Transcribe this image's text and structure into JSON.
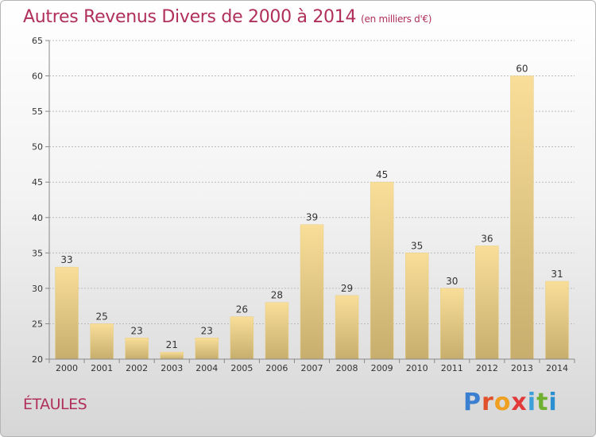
{
  "title": "Autres Revenus Divers de 2000 à 2014",
  "unit": "(en milliers d'€)",
  "town": "ÉTAULES",
  "logo": {
    "letters": [
      "P",
      "r",
      "o",
      "x",
      "i",
      "t",
      "i"
    ],
    "colors": [
      "#3b7fd0",
      "#e0502a",
      "#f0a020",
      "#e23a3a",
      "#3b9fd8",
      "#70b030",
      "#2c8fd0"
    ]
  },
  "chart_data": {
    "type": "bar",
    "title": "Autres Revenus Divers de 2000 à 2014",
    "categories": [
      "2000",
      "2001",
      "2002",
      "2003",
      "2004",
      "2005",
      "2006",
      "2007",
      "2008",
      "2009",
      "2010",
      "2011",
      "2012",
      "2013",
      "2014"
    ],
    "values": [
      33,
      25,
      23,
      21,
      23,
      26,
      28,
      39,
      29,
      45,
      35,
      30,
      36,
      60,
      31
    ],
    "ylim": [
      20,
      65
    ],
    "yticks": [
      20,
      25,
      30,
      35,
      40,
      45,
      50,
      55,
      60,
      65
    ],
    "grid": true,
    "bar_color": "#f0d48c"
  }
}
